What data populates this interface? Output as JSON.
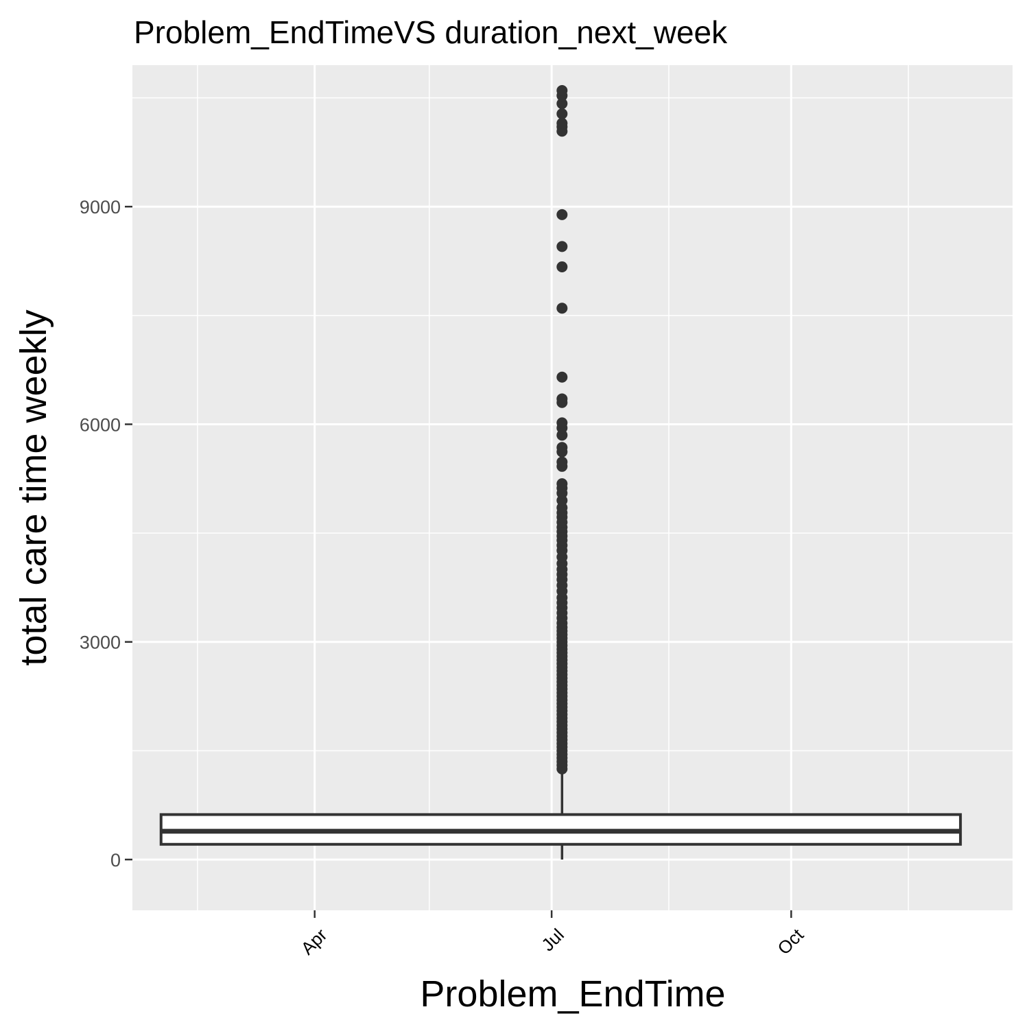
{
  "chart_data": {
    "type": "boxplot",
    "title": "Problem_EndTimeVS duration_next_week",
    "xlabel": "Problem_EndTime",
    "ylabel": "total care time weekly",
    "x_axis": {
      "kind": "date",
      "range": [
        "2018-01-21",
        "2018-12-25"
      ],
      "ticks": [
        {
          "label": "Apr",
          "date": "2018-04-01"
        },
        {
          "label": "Jul",
          "date": "2018-07-01"
        },
        {
          "label": "Oct",
          "date": "2018-10-01"
        }
      ],
      "minor_ticks": [
        "2018-02-15",
        "2018-05-15",
        "2018-08-15",
        "2018-11-15"
      ],
      "tick_label_rotation": 45
    },
    "y_axis": {
      "range": [
        -700,
        10950
      ],
      "ticks": [
        0,
        3000,
        6000,
        9000
      ],
      "minor_ticks": [
        1500,
        4500,
        7500,
        10500
      ]
    },
    "grid": true,
    "box": {
      "x_center": "2018-07-05",
      "x_left": "2018-02-01",
      "x_right": "2018-12-05",
      "whisker_low": 0,
      "q1": 210,
      "median": 390,
      "q3": 620,
      "whisker_high": 1230,
      "outliers": [
        1250,
        1300,
        1350,
        1400,
        1450,
        1500,
        1550,
        1600,
        1650,
        1700,
        1750,
        1800,
        1850,
        1900,
        1950,
        2000,
        2050,
        2100,
        2150,
        2200,
        2250,
        2300,
        2350,
        2400,
        2450,
        2500,
        2550,
        2600,
        2650,
        2700,
        2750,
        2800,
        2850,
        2900,
        2950,
        3000,
        3050,
        3100,
        3150,
        3200,
        3260,
        3330,
        3400,
        3470,
        3540,
        3610,
        3700,
        3780,
        3860,
        3930,
        4000,
        4080,
        4170,
        4260,
        4330,
        4400,
        4460,
        4520,
        4580,
        4650,
        4720,
        4780,
        4850,
        4950,
        5050,
        5120,
        5180,
        5420,
        5480,
        5620,
        5680,
        5850,
        5950,
        6020,
        6300,
        6350,
        6650,
        7600,
        8170,
        8450,
        8890,
        10040,
        10100,
        10150,
        10280,
        10420,
        10530,
        10600
      ]
    },
    "colors": {
      "panel_background": "#ebebeb",
      "grid": "#ffffff",
      "box_stroke": "#333333",
      "box_fill": "#ffffff",
      "outlier": "#333333",
      "tick_label_y": "#4d4d4d"
    }
  }
}
